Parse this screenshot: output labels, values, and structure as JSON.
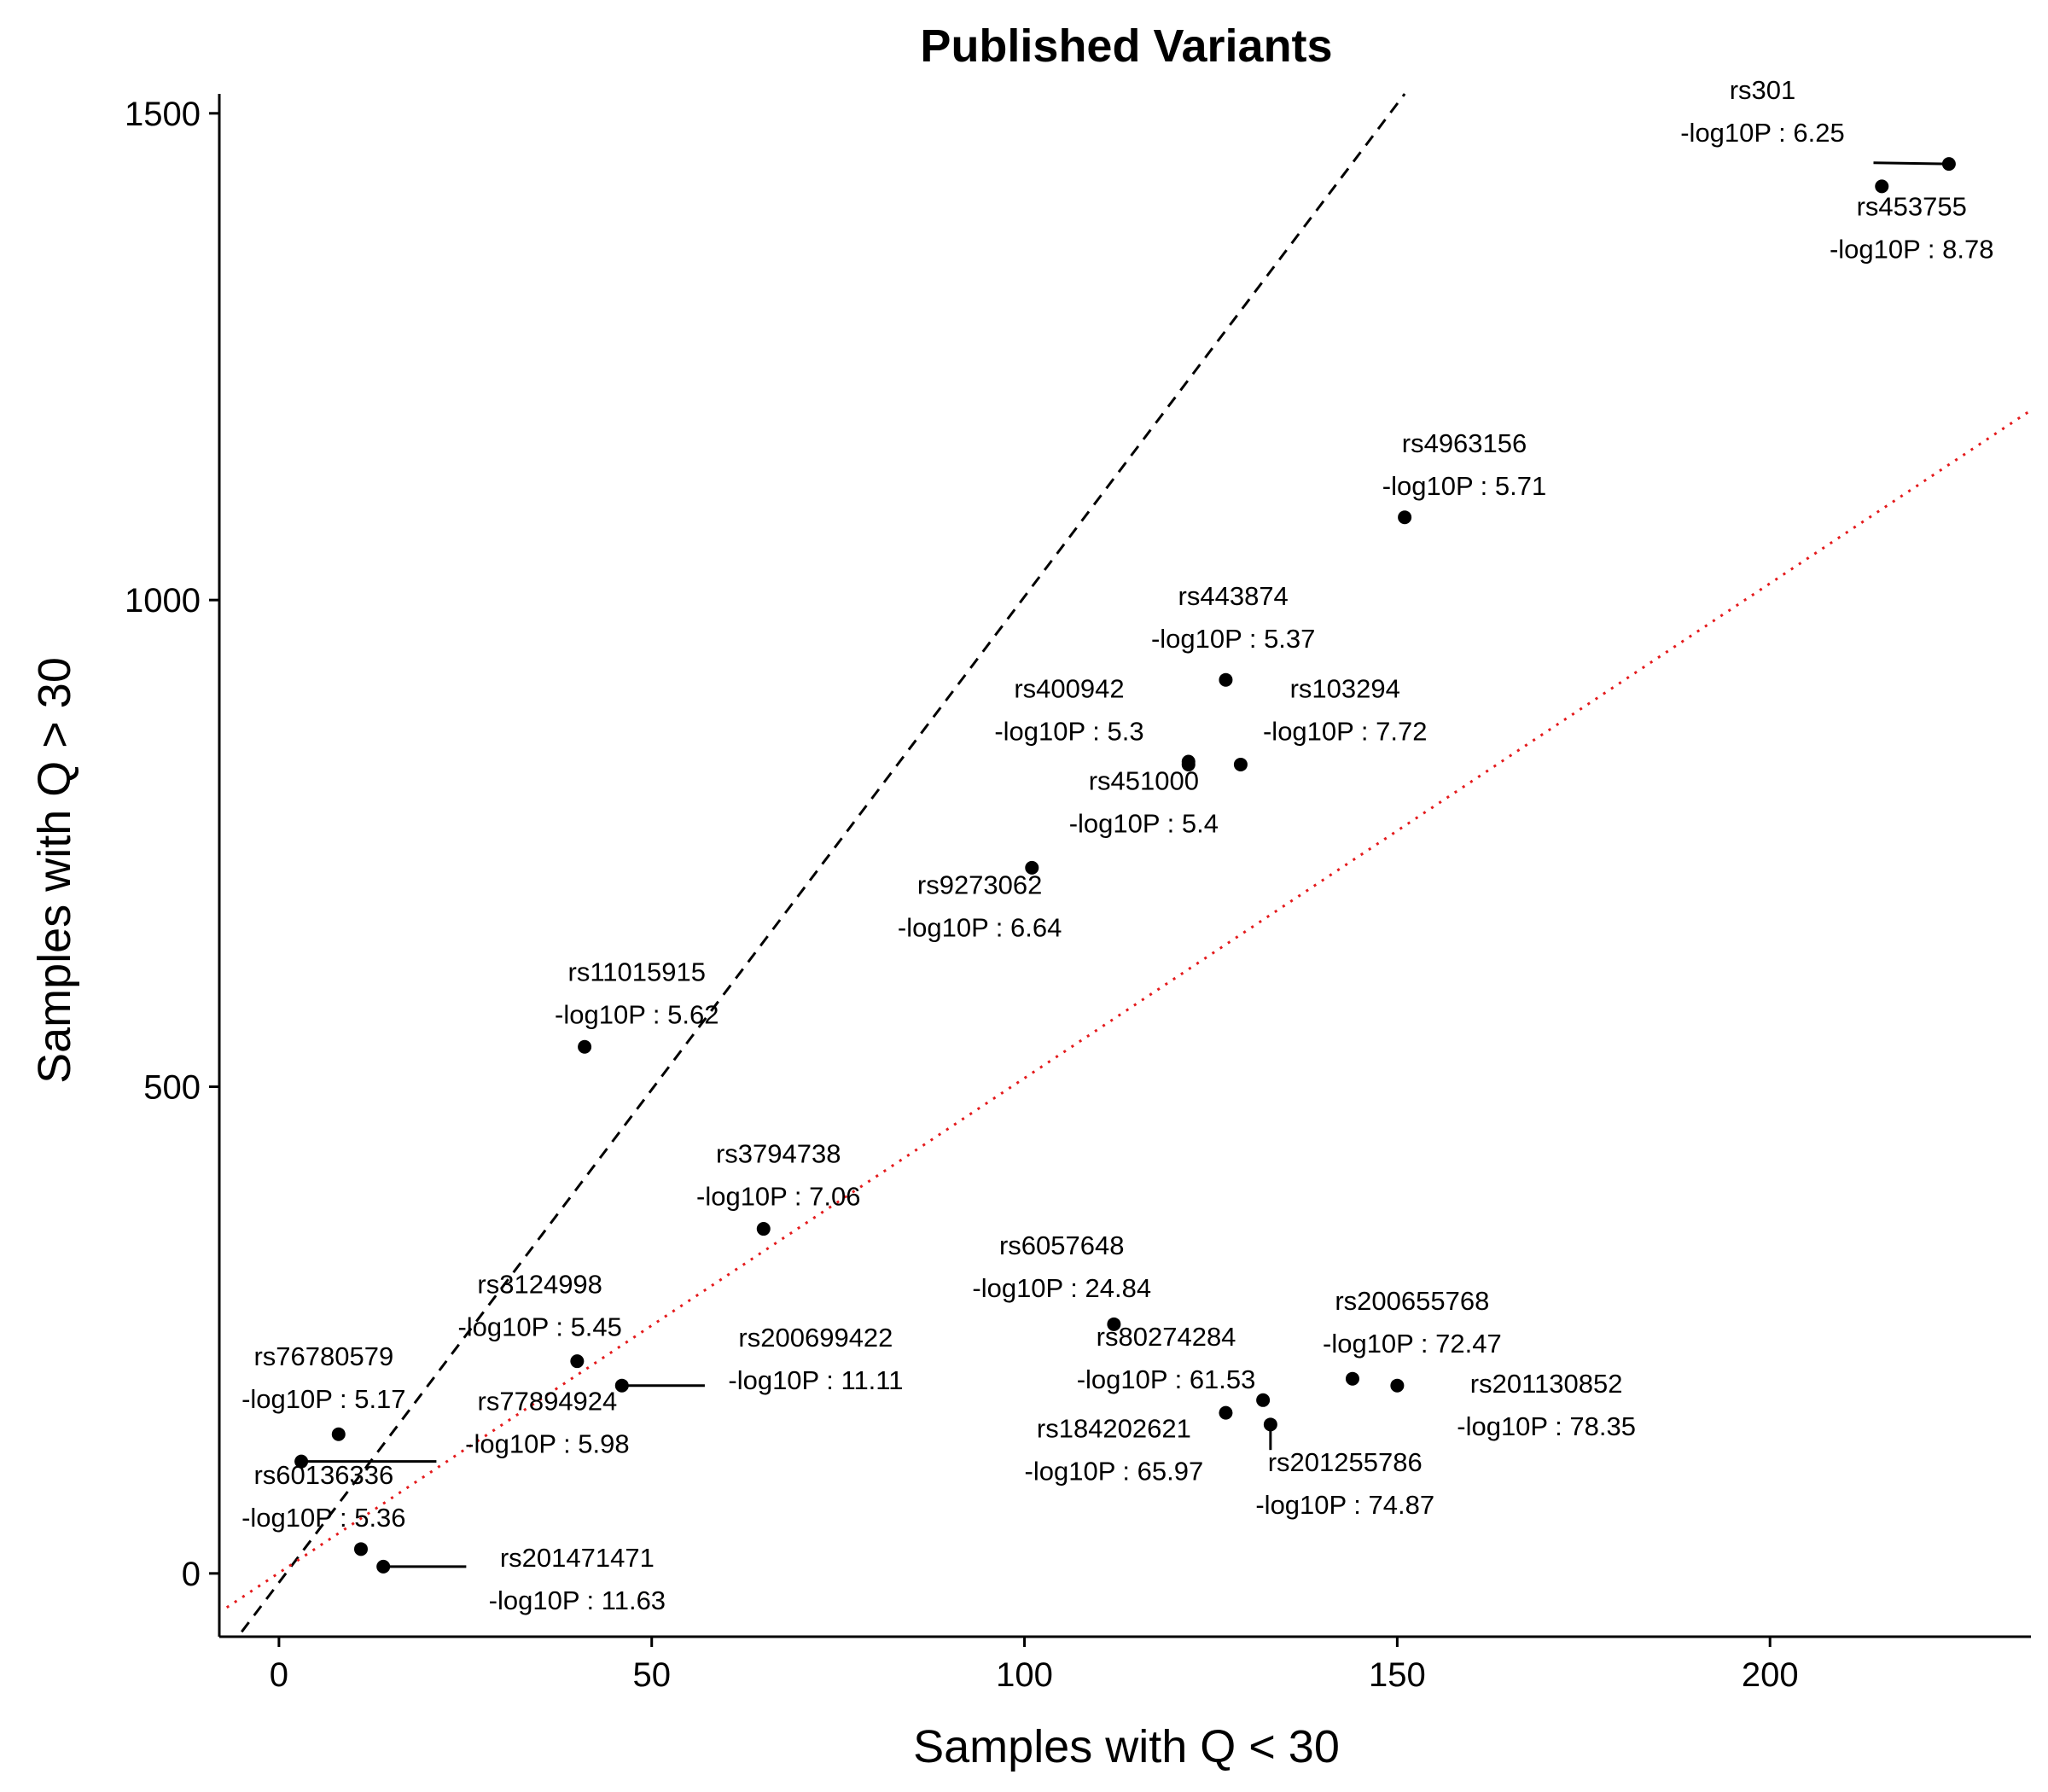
{
  "chart_data": {
    "type": "scatter",
    "title": "Published Variants",
    "xlabel": "Samples with Q < 30",
    "ylabel": "Samples with Q > 30",
    "xlim": [
      -8,
      235
    ],
    "ylim": [
      -65,
      1520
    ],
    "x_ticks": [
      0,
      50,
      100,
      150,
      200
    ],
    "y_ticks": [
      0,
      500,
      1000,
      1500
    ],
    "grid": false,
    "legend": "none",
    "label_prefix": "-log10P :  ",
    "reference_lines": [
      {
        "kind": "dashed",
        "color": "#000000",
        "points": [
          [
            -5,
            -60
          ],
          [
            151,
            1520
          ]
        ]
      },
      {
        "kind": "dotted",
        "color": "#e41a1c",
        "points": [
          [
            -7,
            -35
          ],
          [
            235,
            1195
          ]
        ]
      }
    ],
    "point_color": "#000000",
    "points": [
      {
        "id": "rs301",
        "x": 224,
        "y": 1448,
        "logp": "6.25",
        "lx": 199,
        "ly": 1493,
        "leader": true
      },
      {
        "id": "rs453755",
        "x": 215,
        "y": 1425,
        "logp": "8.78",
        "lx": 219,
        "ly": 1373,
        "leader": false
      },
      {
        "id": "rs4963156",
        "x": 151,
        "y": 1085,
        "logp": "5.71",
        "lx": 159,
        "ly": 1130,
        "leader": false
      },
      {
        "id": "rs443874",
        "x": 127,
        "y": 918,
        "logp": "5.37",
        "lx": 128,
        "ly": 973,
        "leader": false
      },
      {
        "id": "rs400942",
        "x": 122,
        "y": 834,
        "logp": "5.3",
        "lx": 106,
        "ly": 878,
        "leader": false
      },
      {
        "id": "rs103294",
        "x": 129,
        "y": 831,
        "logp": "7.72",
        "lx": 143,
        "ly": 878,
        "leader": false
      },
      {
        "id": "rs451000",
        "x": 122,
        "y": 831,
        "logp": "5.4",
        "lx": 116,
        "ly": 783,
        "leader": false
      },
      {
        "id": "rs9273062",
        "x": 101,
        "y": 725,
        "logp": "6.64",
        "lx": 94,
        "ly": 676,
        "leader": false
      },
      {
        "id": "rs11015915",
        "x": 41,
        "y": 541,
        "logp": "5.62",
        "lx": 48,
        "ly": 587,
        "leader": false
      },
      {
        "id": "rs3794738",
        "x": 65,
        "y": 354,
        "logp": "7.06",
        "lx": 67,
        "ly": 400,
        "leader": false
      },
      {
        "id": "rs6057648",
        "x": 112,
        "y": 256,
        "logp": "24.84",
        "lx": 105,
        "ly": 306,
        "leader": false
      },
      {
        "id": "rs200655768",
        "x": 144,
        "y": 200,
        "logp": "72.47",
        "lx": 152,
        "ly": 249,
        "leader": true
      },
      {
        "id": "rs201130852",
        "x": 150,
        "y": 193,
        "logp": "78.35",
        "lx": 170,
        "ly": 164,
        "leader": false
      },
      {
        "id": "rs80274284",
        "x": 132,
        "y": 178,
        "logp": "61.53",
        "lx": 119,
        "ly": 212,
        "leader": false
      },
      {
        "id": "rs184202621",
        "x": 127,
        "y": 165,
        "logp": "65.97",
        "lx": 112,
        "ly": 118,
        "leader": false
      },
      {
        "id": "rs201255786",
        "x": 133,
        "y": 153,
        "logp": "74.87",
        "lx": 143,
        "ly": 83,
        "leader": true
      },
      {
        "id": "rs3124998",
        "x": 40,
        "y": 218,
        "logp": "5.45",
        "lx": 35,
        "ly": 266,
        "leader": false
      },
      {
        "id": "rs200699422",
        "x": 46,
        "y": 193,
        "logp": "11.11",
        "lx": 72,
        "ly": 211,
        "leader": true
      },
      {
        "id": "rs76780579",
        "x": 8,
        "y": 143,
        "logp": "5.17",
        "lx": 6,
        "ly": 192,
        "leader": false
      },
      {
        "id": "rs77894924",
        "x": 3,
        "y": 115,
        "logp": "5.98",
        "lx": 36,
        "ly": 146,
        "leader": true
      },
      {
        "id": "rs60136336",
        "x": 11,
        "y": 25,
        "logp": "5.36",
        "lx": 6,
        "ly": 70,
        "leader": false
      },
      {
        "id": "rs201471471",
        "x": 14,
        "y": 7,
        "logp": "11.63",
        "lx": 40,
        "ly": -15,
        "leader": true
      }
    ]
  }
}
